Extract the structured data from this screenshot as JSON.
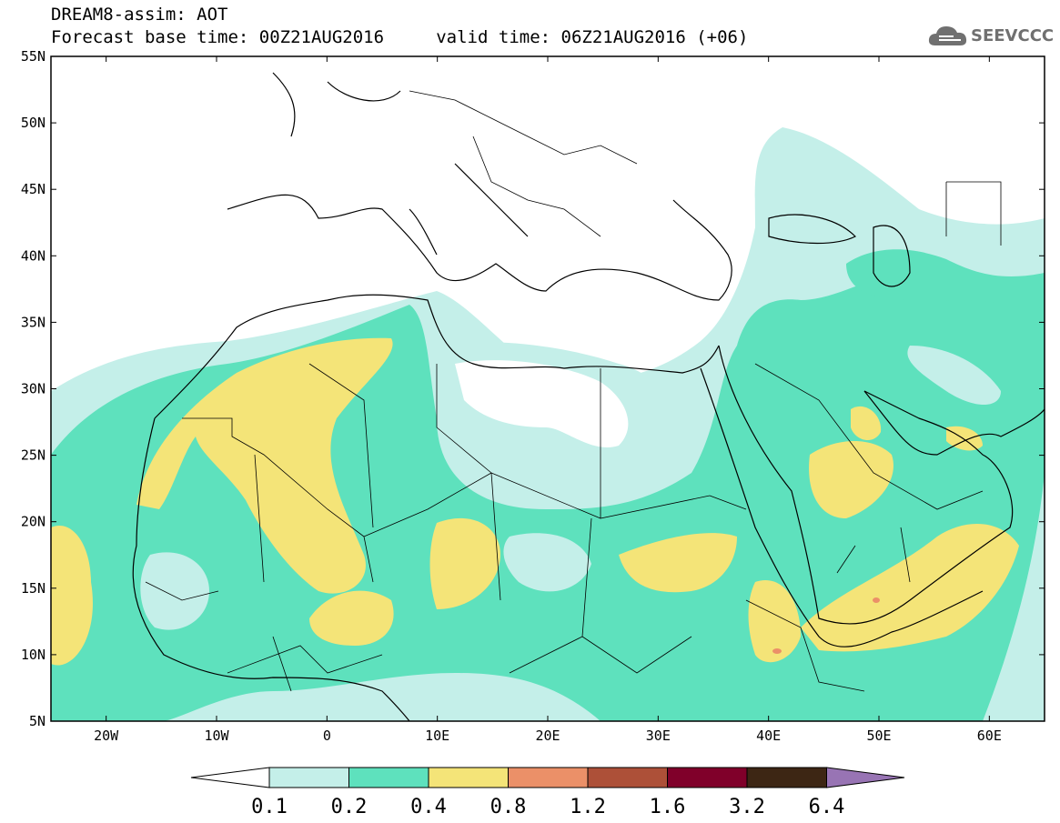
{
  "header": {
    "title_line1": "DREAM8-assim: AOT",
    "title_line2": "Forecast base time: 00Z21AUG2016     valid time: 06Z21AUG2016 (+06)",
    "logo_text": "SEEVCCC",
    "logo_icon": "cloud-icon"
  },
  "map": {
    "lon_range": [
      -25,
      65
    ],
    "lat_range": [
      5,
      55
    ],
    "lat_labels": [
      "55N",
      "50N",
      "45N",
      "40N",
      "35N",
      "30N",
      "25N",
      "20N",
      "15N",
      "10N",
      "5N"
    ],
    "lon_labels": [
      "20W",
      "10W",
      "0",
      "10E",
      "20E",
      "30E",
      "40E",
      "50E",
      "60E"
    ],
    "colors": {
      "c01": "#c4efe9",
      "c02": "#5ee1bd",
      "c04": "#f4e478",
      "c08": "#eb9068",
      "c12": "#ad5038",
      "c16": "#80002a",
      "c32": "#3d2614",
      "c64": "#9874b4"
    }
  },
  "colorbar": {
    "labels": [
      "0.1",
      "0.2",
      "0.4",
      "0.8",
      "1.2",
      "1.6",
      "3.2",
      "6.4"
    ],
    "colors": [
      "#c4efe9",
      "#5ee1bd",
      "#f4e478",
      "#eb9068",
      "#ad5038",
      "#80002a",
      "#3d2614"
    ],
    "over_color": "#9874b4",
    "under_color": "#ffffff"
  }
}
